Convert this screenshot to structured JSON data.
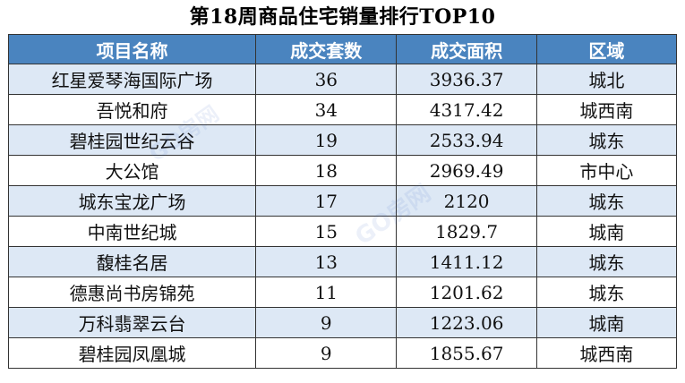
{
  "title": "第18周商品住宅销量排行TOP10",
  "table": {
    "headers": [
      "项目名称",
      "成交套数",
      "成交面积",
      "区域"
    ],
    "rows": [
      {
        "name": "红星爱琴海国际广场",
        "count": "36",
        "area": "3936.37",
        "region": "城北"
      },
      {
        "name": "吾悦和府",
        "count": "34",
        "area": "4317.42",
        "region": "城西南"
      },
      {
        "name": "碧桂园世纪云谷",
        "count": "19",
        "area": "2533.94",
        "region": "城东"
      },
      {
        "name": "大公馆",
        "count": "18",
        "area": "2969.49",
        "region": "市中心"
      },
      {
        "name": "城东宝龙广场",
        "count": "17",
        "area": "2120",
        "region": "城东"
      },
      {
        "name": "中南世纪城",
        "count": "15",
        "area": "1829.7",
        "region": "城南"
      },
      {
        "name": "馥桂名居",
        "count": "13",
        "area": "1411.12",
        "region": "城东"
      },
      {
        "name": "德惠尚书房锦苑",
        "count": "11",
        "area": "1201.62",
        "region": "城东"
      },
      {
        "name": "万科翡翠云台",
        "count": "9",
        "area": "1223.06",
        "region": "城南"
      },
      {
        "name": "碧桂园凤凰城",
        "count": "9",
        "area": "1855.67",
        "region": "城西南"
      }
    ]
  },
  "watermark": {
    "text_1": "GO房网",
    "text_2": "GO房网",
    "color": "#466ec8"
  },
  "colors": {
    "header_bg": "#4a84bf",
    "header_text": "#ffffff",
    "stripe_bg": "#dde8f5",
    "row_bg": "#ffffff",
    "border": "#333333"
  }
}
